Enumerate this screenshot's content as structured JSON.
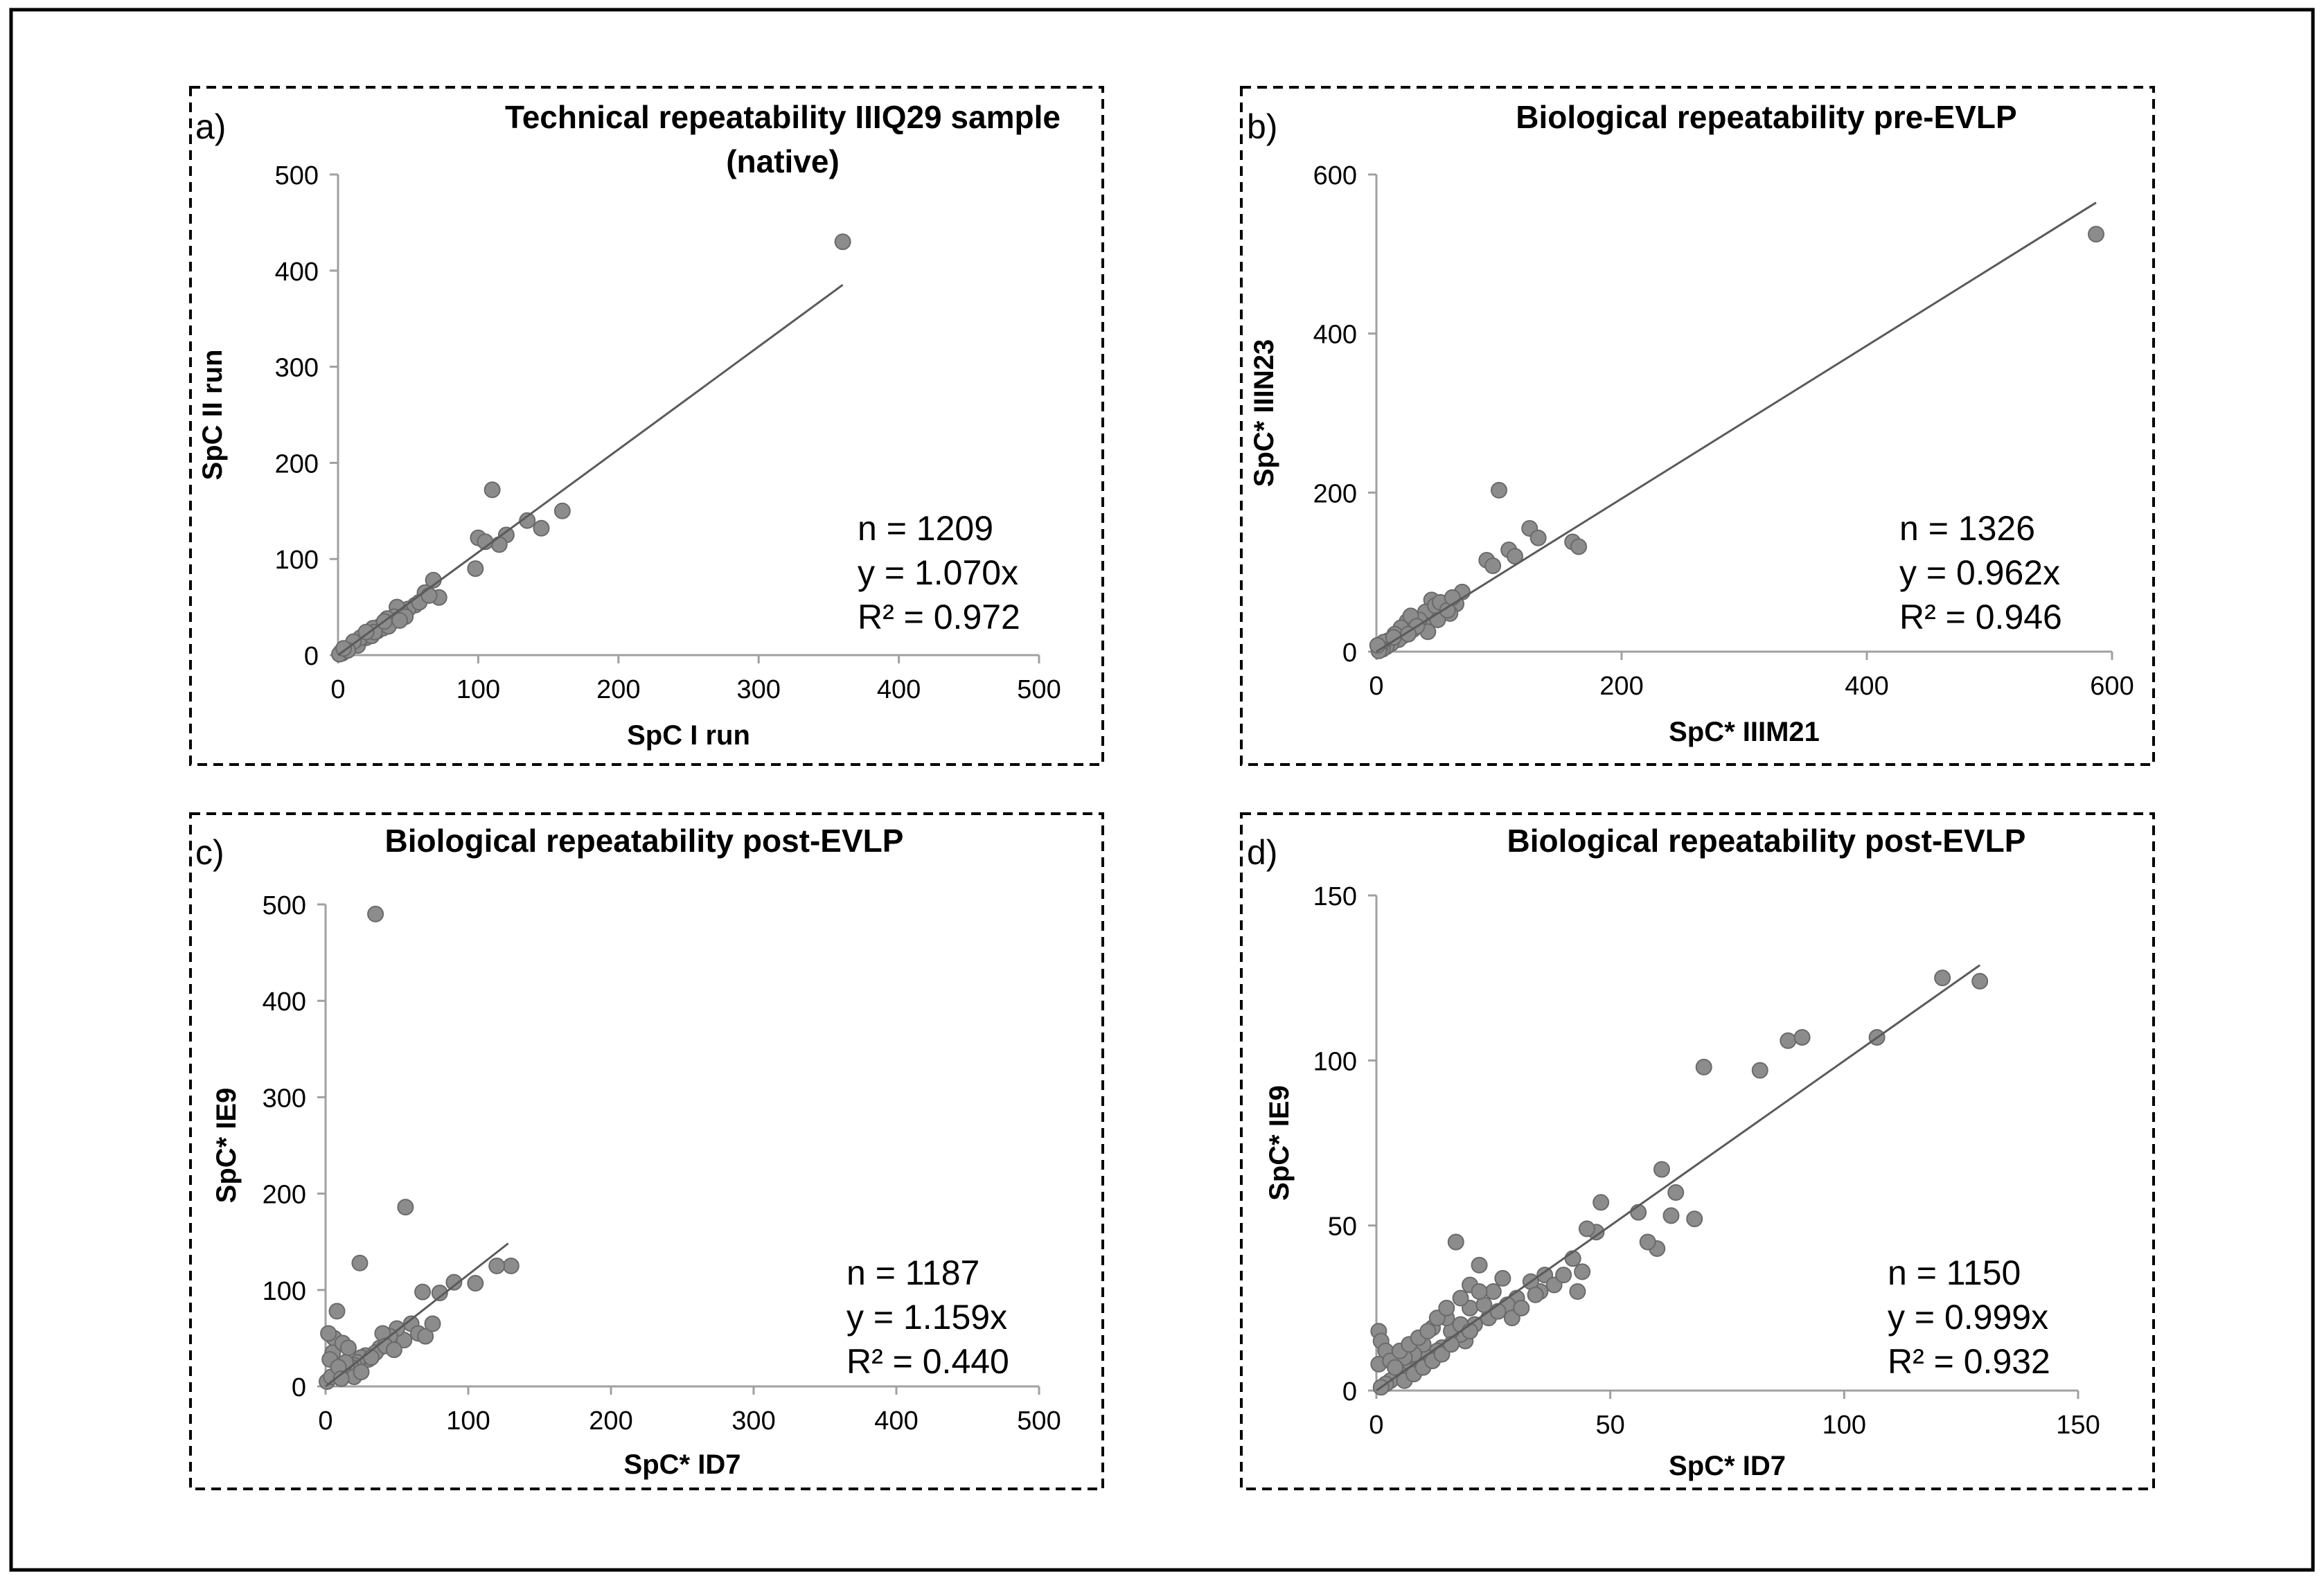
{
  "colors": {
    "frame": "#000000",
    "marker_fill": "#8c8c8c",
    "marker_stroke": "#6a6a6a",
    "trendline": "#5a5a5a",
    "axis": "#a0a0a0",
    "text": "#000000"
  },
  "chart_data": [
    {
      "type": "scatter",
      "panel": "a)",
      "title_lines": [
        "Technical repeatability IIIQ29 sample",
        "(native)"
      ],
      "xlabel": "SpC I run",
      "ylabel": "SpC II run",
      "xlim": [
        0,
        500
      ],
      "ylim": [
        0,
        500
      ],
      "xticks": [
        0,
        100,
        200,
        300,
        400,
        500
      ],
      "yticks": [
        0,
        100,
        200,
        300,
        400,
        500
      ],
      "stats": [
        "n = 1209",
        "y = 1.070x",
        "R² = 0.972"
      ],
      "trendline": {
        "slope": 1.07,
        "x_end": 360
      },
      "points": [
        [
          360,
          430
        ],
        [
          110,
          172
        ],
        [
          160,
          150
        ],
        [
          135,
          140
        ],
        [
          120,
          125
        ],
        [
          145,
          132
        ],
        [
          115,
          115
        ],
        [
          100,
          122
        ],
        [
          105,
          118
        ],
        [
          98,
          90
        ],
        [
          72,
          60
        ],
        [
          68,
          78
        ],
        [
          62,
          65
        ],
        [
          55,
          52
        ],
        [
          50,
          48
        ],
        [
          45,
          45
        ],
        [
          42,
          50
        ],
        [
          40,
          40
        ],
        [
          38,
          34
        ],
        [
          35,
          38
        ],
        [
          30,
          30
        ],
        [
          28,
          25
        ],
        [
          25,
          28
        ],
        [
          22,
          22
        ],
        [
          20,
          18
        ],
        [
          18,
          20
        ],
        [
          15,
          15
        ],
        [
          12,
          12
        ],
        [
          10,
          10
        ],
        [
          8,
          8
        ],
        [
          6,
          6
        ],
        [
          5,
          4
        ],
        [
          3,
          2
        ],
        [
          2,
          3
        ],
        [
          1,
          1
        ],
        [
          14,
          10
        ],
        [
          16,
          18
        ],
        [
          24,
          20
        ],
        [
          32,
          28
        ],
        [
          36,
          30
        ],
        [
          48,
          40
        ],
        [
          58,
          55
        ],
        [
          65,
          62
        ],
        [
          44,
          36
        ],
        [
          26,
          24
        ],
        [
          11,
          14
        ],
        [
          7,
          5
        ],
        [
          4,
          7
        ],
        [
          20,
          24
        ],
        [
          33,
          35
        ]
      ]
    },
    {
      "type": "scatter",
      "panel": "b)",
      "title_lines": [
        "Biological repeatability pre-EVLP"
      ],
      "xlabel": "SpC* IIIM21",
      "ylabel": "SpC* IIIN23",
      "xlim": [
        0,
        600
      ],
      "ylim": [
        0,
        600
      ],
      "xticks": [
        0,
        200,
        400,
        600
      ],
      "yticks": [
        0,
        200,
        400,
        600
      ],
      "stats": [
        "n = 1326",
        "y = 0.962x",
        "R² = 0.946"
      ],
      "trendline": {
        "slope": 0.962,
        "x_end": 587
      },
      "points": [
        [
          587,
          525
        ],
        [
          100,
          203
        ],
        [
          125,
          155
        ],
        [
          132,
          143
        ],
        [
          160,
          138
        ],
        [
          165,
          132
        ],
        [
          108,
          128
        ],
        [
          113,
          120
        ],
        [
          90,
          115
        ],
        [
          95,
          108
        ],
        [
          70,
          75
        ],
        [
          65,
          60
        ],
        [
          60,
          48
        ],
        [
          55,
          55
        ],
        [
          50,
          40
        ],
        [
          45,
          65
        ],
        [
          40,
          50
        ],
        [
          38,
          35
        ],
        [
          35,
          40
        ],
        [
          30,
          28
        ],
        [
          25,
          38
        ],
        [
          22,
          20
        ],
        [
          20,
          30
        ],
        [
          18,
          15
        ],
        [
          15,
          22
        ],
        [
          12,
          10
        ],
        [
          10,
          14
        ],
        [
          8,
          6
        ],
        [
          6,
          12
        ],
        [
          5,
          3
        ],
        [
          3,
          5
        ],
        [
          2,
          1
        ],
        [
          1,
          8
        ],
        [
          28,
          45
        ],
        [
          42,
          25
        ],
        [
          48,
          58
        ],
        [
          52,
          62
        ],
        [
          58,
          52
        ],
        [
          62,
          68
        ],
        [
          14,
          18
        ],
        [
          33,
          32
        ],
        [
          26,
          22
        ]
      ]
    },
    {
      "type": "scatter",
      "panel": "c)",
      "title_lines": [
        "Biological repeatability post-EVLP"
      ],
      "xlabel": "SpC* ID7",
      "ylabel": "SpC* IE9",
      "xlim": [
        0,
        500
      ],
      "ylim": [
        0,
        500
      ],
      "xticks": [
        0,
        100,
        200,
        300,
        400,
        500
      ],
      "yticks": [
        0,
        100,
        200,
        300,
        400,
        500
      ],
      "stats": [
        "n = 1187",
        "y = 1.159x",
        "R² = 0.440"
      ],
      "trendline": {
        "slope": 1.159,
        "x_end": 128
      },
      "points": [
        [
          35,
          490
        ],
        [
          56,
          186
        ],
        [
          24,
          128
        ],
        [
          130,
          125
        ],
        [
          120,
          125
        ],
        [
          105,
          107
        ],
        [
          90,
          108
        ],
        [
          80,
          97
        ],
        [
          68,
          98
        ],
        [
          60,
          65
        ],
        [
          55,
          48
        ],
        [
          50,
          60
        ],
        [
          45,
          52
        ],
        [
          40,
          55
        ],
        [
          38,
          40
        ],
        [
          35,
          35
        ],
        [
          30,
          28
        ],
        [
          28,
          32
        ],
        [
          25,
          30
        ],
        [
          22,
          25
        ],
        [
          20,
          22
        ],
        [
          18,
          20
        ],
        [
          15,
          18
        ],
        [
          12,
          15
        ],
        [
          10,
          12
        ],
        [
          8,
          78
        ],
        [
          6,
          50
        ],
        [
          5,
          35
        ],
        [
          3,
          28
        ],
        [
          2,
          55
        ],
        [
          1,
          5
        ],
        [
          4,
          10
        ],
        [
          12,
          45
        ],
        [
          16,
          40
        ],
        [
          14,
          25
        ],
        [
          20,
          10
        ],
        [
          25,
          15
        ],
        [
          32,
          30
        ],
        [
          65,
          55
        ],
        [
          70,
          52
        ],
        [
          75,
          65
        ],
        [
          42,
          42
        ],
        [
          48,
          38
        ],
        [
          9,
          20
        ],
        [
          11,
          8
        ]
      ]
    },
    {
      "type": "scatter",
      "panel": "d)",
      "title_lines": [
        "Biological repeatability post-EVLP"
      ],
      "xlabel": "SpC* ID7",
      "ylabel": "SpC* IE9",
      "xlim": [
        0,
        150
      ],
      "ylim": [
        0,
        150
      ],
      "xticks": [
        0,
        50,
        100,
        150
      ],
      "yticks": [
        0,
        50,
        100,
        150
      ],
      "stats": [
        "n = 1150",
        "y = 0.999x",
        "R² = 0.932"
      ],
      "trendline": {
        "slope": 0.999,
        "x_end": 129
      },
      "points": [
        [
          121,
          125
        ],
        [
          129,
          124
        ],
        [
          107,
          107
        ],
        [
          88,
          106
        ],
        [
          91,
          107
        ],
        [
          82,
          97
        ],
        [
          70,
          98
        ],
        [
          68,
          52
        ],
        [
          64,
          60
        ],
        [
          63,
          53
        ],
        [
          61,
          67
        ],
        [
          60,
          43
        ],
        [
          58,
          45
        ],
        [
          56,
          54
        ],
        [
          48,
          57
        ],
        [
          47,
          48
        ],
        [
          45,
          49
        ],
        [
          44,
          36
        ],
        [
          42,
          40
        ],
        [
          43,
          30
        ],
        [
          36,
          35
        ],
        [
          35,
          30
        ],
        [
          33,
          33
        ],
        [
          30,
          28
        ],
        [
          28,
          26
        ],
        [
          27,
          34
        ],
        [
          25,
          30
        ],
        [
          24,
          22
        ],
        [
          22,
          38
        ],
        [
          21,
          20
        ],
        [
          20,
          25
        ],
        [
          19,
          15
        ],
        [
          18,
          17
        ],
        [
          17,
          45
        ],
        [
          16,
          18
        ],
        [
          15,
          22
        ],
        [
          14,
          13
        ],
        [
          13,
          12
        ],
        [
          12,
          19
        ],
        [
          11,
          10
        ],
        [
          10,
          14
        ],
        [
          9,
          8
        ],
        [
          8,
          11
        ],
        [
          7,
          6
        ],
        [
          6,
          10
        ],
        [
          5,
          5
        ],
        [
          4,
          4
        ],
        [
          3,
          3
        ],
        [
          2,
          2
        ],
        [
          1,
          1
        ],
        [
          0.5,
          18
        ],
        [
          1,
          15
        ],
        [
          2,
          12
        ],
        [
          0.5,
          8
        ],
        [
          3,
          9
        ],
        [
          4,
          7
        ],
        [
          6,
          3
        ],
        [
          8,
          5
        ],
        [
          10,
          7
        ],
        [
          12,
          9
        ],
        [
          14,
          11
        ],
        [
          16,
          14
        ],
        [
          18,
          20
        ],
        [
          20,
          18
        ],
        [
          23,
          26
        ],
        [
          26,
          24
        ],
        [
          29,
          22
        ],
        [
          31,
          25
        ],
        [
          34,
          29
        ],
        [
          38,
          32
        ],
        [
          40,
          35
        ],
        [
          5,
          12
        ],
        [
          7,
          14
        ],
        [
          9,
          16
        ],
        [
          11,
          18
        ],
        [
          13,
          22
        ],
        [
          15,
          25
        ],
        [
          18,
          28
        ],
        [
          20,
          32
        ],
        [
          22,
          30
        ]
      ]
    }
  ]
}
